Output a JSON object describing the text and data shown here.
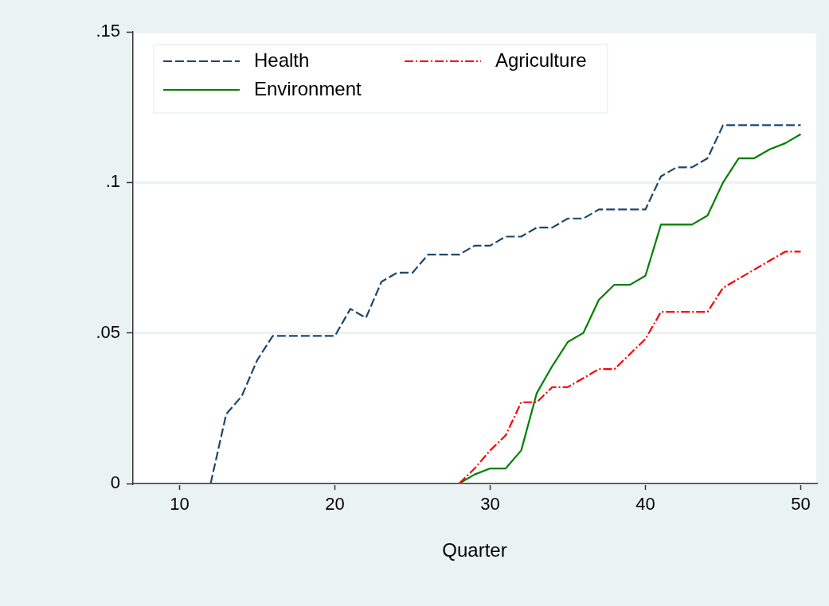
{
  "chart_data": {
    "type": "line",
    "xlabel": "Quarter",
    "xlim": [
      7,
      51
    ],
    "xticks": [
      10,
      20,
      30,
      40,
      50
    ],
    "ylim": [
      0,
      0.15
    ],
    "yticks": [
      {
        "value": 0,
        "label": "0"
      },
      {
        "value": 0.05,
        "label": ".05"
      },
      {
        "value": 0.1,
        "label": ".1"
      },
      {
        "value": 0.15,
        "label": ".15"
      }
    ],
    "grid": "y",
    "legend": "top left",
    "marker": "none",
    "series": [
      {
        "name": "Health",
        "color": "#1a476f",
        "line_style": "dashed",
        "x": [
          12,
          13,
          14,
          15,
          16,
          17,
          18,
          19,
          20,
          21,
          22,
          23,
          24,
          25,
          26,
          27,
          28,
          29,
          30,
          31,
          32,
          33,
          34,
          35,
          36,
          37,
          38,
          39,
          40,
          41,
          42,
          43,
          44,
          45,
          46,
          47,
          48,
          49,
          50
        ],
        "values": [
          0,
          0.023,
          0.029,
          0.041,
          0.049,
          0.049,
          0.049,
          0.049,
          0.049,
          0.058,
          0.055,
          0.067,
          0.07,
          0.07,
          0.076,
          0.076,
          0.076,
          0.079,
          0.079,
          0.082,
          0.082,
          0.085,
          0.085,
          0.088,
          0.088,
          0.091,
          0.091,
          0.091,
          0.091,
          0.102,
          0.105,
          0.105,
          0.108,
          0.119,
          0.119,
          0.119,
          0.119,
          0.119,
          0.119
        ]
      },
      {
        "name": "Agriculture",
        "color": "#ff0000",
        "line_style": "dashdot",
        "x": [
          28,
          29,
          30,
          31,
          32,
          33,
          34,
          35,
          36,
          37,
          38,
          39,
          40,
          41,
          42,
          43,
          44,
          45,
          46,
          47,
          48,
          49,
          50
        ],
        "values": [
          0,
          0.005,
          0.011,
          0.016,
          0.027,
          0.027,
          0.032,
          0.032,
          0.035,
          0.038,
          0.038,
          0.043,
          0.048,
          0.057,
          0.057,
          0.057,
          0.057,
          0.065,
          0.068,
          0.071,
          0.074,
          0.077,
          0.077
        ]
      },
      {
        "name": "Environment",
        "color": "#008000",
        "line_style": "solid",
        "x": [
          28,
          29,
          30,
          31,
          32,
          33,
          34,
          35,
          36,
          37,
          38,
          39,
          40,
          41,
          42,
          43,
          44,
          45,
          46,
          47,
          48,
          49,
          50
        ],
        "values": [
          0,
          0.003,
          0.005,
          0.005,
          0.011,
          0.03,
          0.039,
          0.047,
          0.05,
          0.061,
          0.066,
          0.066,
          0.069,
          0.086,
          0.086,
          0.086,
          0.089,
          0.1,
          0.108,
          0.108,
          0.111,
          0.113,
          0.116
        ]
      }
    ]
  }
}
